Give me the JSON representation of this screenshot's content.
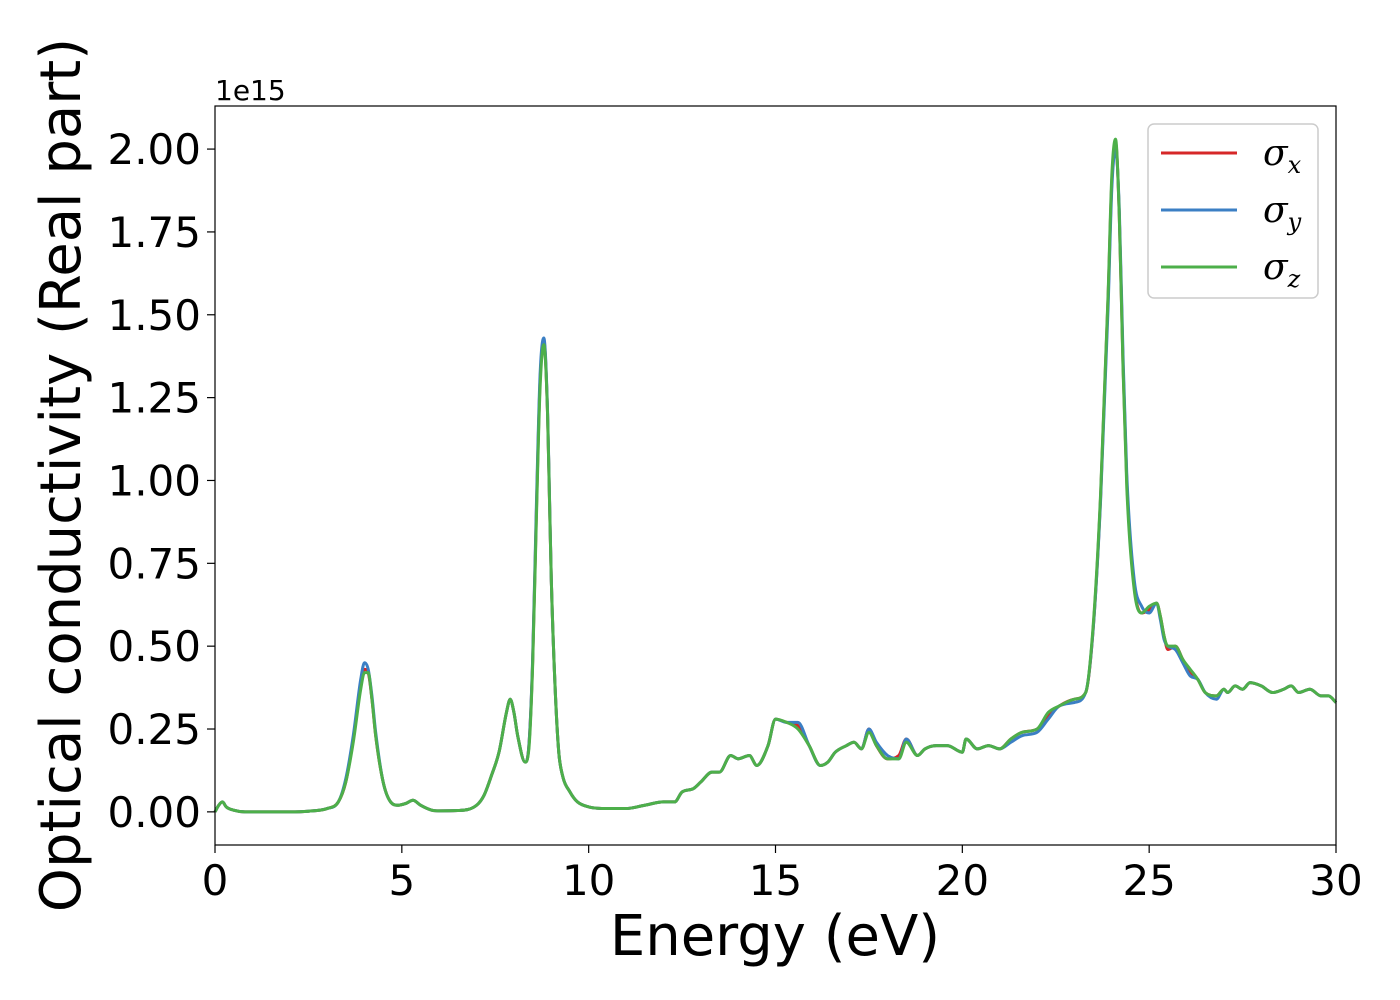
{
  "chart_data": {
    "type": "line",
    "xlabel": "Energy (eV)",
    "ylabel": "Optical conductivity (Real part)",
    "y_offset_text": "1e15",
    "xlim": [
      0,
      30
    ],
    "ylim": [
      -0.1,
      2.13
    ],
    "y_scale_factor": 1000000000000000.0,
    "xticks": [
      0,
      5,
      10,
      15,
      20,
      25,
      30
    ],
    "xtick_labels": [
      "0",
      "5",
      "10",
      "15",
      "20",
      "25",
      "30"
    ],
    "yticks": [
      0.0,
      0.25,
      0.5,
      0.75,
      1.0,
      1.25,
      1.5,
      1.75,
      2.0
    ],
    "ytick_labels": [
      "0.00",
      "0.25",
      "0.50",
      "0.75",
      "1.00",
      "1.25",
      "1.50",
      "1.75",
      "2.00"
    ],
    "grid": false,
    "legend_position": "top-right",
    "colors": {
      "sigma_x": "#d62728",
      "sigma_y": "#3b7fc4",
      "sigma_z": "#4daf4a"
    },
    "x": [
      0.0,
      0.1,
      0.2,
      0.3,
      0.5,
      0.8,
      1.0,
      1.5,
      2.0,
      2.5,
      3.0,
      3.3,
      3.5,
      3.7,
      3.9,
      4.0,
      4.1,
      4.2,
      4.3,
      4.5,
      4.7,
      4.9,
      5.1,
      5.3,
      5.5,
      5.8,
      6.0,
      6.5,
      7.0,
      7.2,
      7.4,
      7.6,
      7.8,
      7.9,
      8.0,
      8.1,
      8.3,
      8.4,
      8.5,
      8.6,
      8.7,
      8.8,
      8.9,
      8.95,
      9.0,
      9.1,
      9.2,
      9.3,
      9.5,
      9.7,
      10.0,
      10.5,
      11.0,
      11.5,
      12.0,
      12.3,
      12.5,
      12.8,
      13.0,
      13.3,
      13.5,
      13.8,
      14.0,
      14.3,
      14.5,
      14.8,
      15.0,
      15.3,
      15.6,
      15.9,
      16.2,
      16.4,
      16.6,
      16.9,
      17.1,
      17.3,
      17.5,
      17.7,
      18.0,
      18.3,
      18.5,
      18.8,
      19.0,
      19.3,
      19.6,
      20.0,
      20.1,
      20.4,
      20.7,
      21.0,
      21.3,
      21.6,
      22.0,
      22.3,
      22.6,
      23.0,
      23.3,
      23.5,
      23.7,
      23.9,
      24.0,
      24.1,
      24.2,
      24.3,
      24.4,
      24.6,
      24.8,
      25.0,
      25.2,
      25.3,
      25.4,
      25.5,
      25.7,
      25.9,
      26.1,
      26.3,
      26.5,
      26.8,
      27.0,
      27.1,
      27.3,
      27.5,
      27.7,
      28.0,
      28.3,
      28.6,
      28.8,
      29.0,
      29.3,
      29.6,
      29.8,
      30.0
    ],
    "series": [
      {
        "name": "σx",
        "values": [
          0.0,
          0.02,
          0.03,
          0.015,
          0.005,
          0.0,
          0.0,
          0.0,
          0.0,
          0.002,
          0.01,
          0.03,
          0.09,
          0.22,
          0.38,
          0.43,
          0.42,
          0.34,
          0.23,
          0.09,
          0.03,
          0.02,
          0.025,
          0.035,
          0.02,
          0.005,
          0.003,
          0.004,
          0.02,
          0.05,
          0.11,
          0.18,
          0.3,
          0.34,
          0.3,
          0.23,
          0.15,
          0.2,
          0.45,
          0.9,
          1.3,
          1.42,
          1.2,
          0.95,
          0.7,
          0.38,
          0.18,
          0.11,
          0.06,
          0.03,
          0.015,
          0.01,
          0.01,
          0.02,
          0.03,
          0.03,
          0.06,
          0.07,
          0.09,
          0.12,
          0.12,
          0.17,
          0.16,
          0.17,
          0.14,
          0.2,
          0.28,
          0.27,
          0.26,
          0.2,
          0.14,
          0.15,
          0.18,
          0.2,
          0.21,
          0.19,
          0.25,
          0.2,
          0.16,
          0.17,
          0.22,
          0.17,
          0.19,
          0.2,
          0.2,
          0.18,
          0.22,
          0.19,
          0.2,
          0.19,
          0.22,
          0.24,
          0.25,
          0.29,
          0.32,
          0.34,
          0.36,
          0.55,
          0.95,
          1.55,
          1.9,
          2.02,
          1.8,
          1.35,
          1.0,
          0.68,
          0.6,
          0.61,
          0.63,
          0.59,
          0.53,
          0.49,
          0.5,
          0.46,
          0.42,
          0.4,
          0.36,
          0.35,
          0.37,
          0.36,
          0.38,
          0.37,
          0.39,
          0.38,
          0.36,
          0.37,
          0.38,
          0.36,
          0.37,
          0.35,
          0.35,
          0.33
        ]
      },
      {
        "name": "σy",
        "values": [
          0.0,
          0.02,
          0.03,
          0.015,
          0.005,
          0.0,
          0.0,
          0.0,
          0.0,
          0.002,
          0.01,
          0.03,
          0.1,
          0.23,
          0.4,
          0.45,
          0.43,
          0.35,
          0.24,
          0.09,
          0.03,
          0.02,
          0.025,
          0.035,
          0.02,
          0.005,
          0.003,
          0.004,
          0.02,
          0.05,
          0.11,
          0.18,
          0.3,
          0.34,
          0.3,
          0.23,
          0.15,
          0.2,
          0.46,
          0.92,
          1.32,
          1.43,
          1.21,
          0.96,
          0.7,
          0.38,
          0.18,
          0.11,
          0.06,
          0.03,
          0.015,
          0.01,
          0.01,
          0.02,
          0.03,
          0.03,
          0.06,
          0.07,
          0.09,
          0.12,
          0.12,
          0.17,
          0.16,
          0.17,
          0.14,
          0.2,
          0.28,
          0.27,
          0.27,
          0.2,
          0.14,
          0.15,
          0.18,
          0.2,
          0.21,
          0.19,
          0.25,
          0.21,
          0.17,
          0.16,
          0.22,
          0.17,
          0.19,
          0.2,
          0.2,
          0.18,
          0.22,
          0.19,
          0.2,
          0.19,
          0.21,
          0.23,
          0.24,
          0.28,
          0.32,
          0.33,
          0.36,
          0.55,
          0.94,
          1.52,
          1.88,
          2.0,
          1.82,
          1.38,
          1.02,
          0.7,
          0.62,
          0.6,
          0.63,
          0.58,
          0.52,
          0.5,
          0.49,
          0.45,
          0.41,
          0.4,
          0.36,
          0.34,
          0.37,
          0.36,
          0.38,
          0.37,
          0.39,
          0.38,
          0.36,
          0.37,
          0.38,
          0.36,
          0.37,
          0.35,
          0.35,
          0.33
        ]
      },
      {
        "name": "σz",
        "values": [
          0.0,
          0.02,
          0.03,
          0.015,
          0.005,
          0.0,
          0.0,
          0.0,
          0.0,
          0.002,
          0.01,
          0.03,
          0.09,
          0.21,
          0.37,
          0.42,
          0.42,
          0.34,
          0.23,
          0.09,
          0.03,
          0.02,
          0.025,
          0.035,
          0.02,
          0.005,
          0.003,
          0.004,
          0.02,
          0.05,
          0.11,
          0.18,
          0.3,
          0.34,
          0.3,
          0.23,
          0.15,
          0.19,
          0.44,
          0.88,
          1.28,
          1.41,
          1.2,
          0.95,
          0.7,
          0.38,
          0.18,
          0.11,
          0.06,
          0.03,
          0.015,
          0.01,
          0.01,
          0.02,
          0.03,
          0.03,
          0.06,
          0.07,
          0.09,
          0.12,
          0.12,
          0.17,
          0.16,
          0.17,
          0.14,
          0.2,
          0.28,
          0.27,
          0.25,
          0.2,
          0.14,
          0.15,
          0.18,
          0.2,
          0.21,
          0.19,
          0.24,
          0.2,
          0.16,
          0.16,
          0.21,
          0.17,
          0.19,
          0.2,
          0.2,
          0.18,
          0.22,
          0.19,
          0.2,
          0.19,
          0.22,
          0.24,
          0.25,
          0.3,
          0.32,
          0.34,
          0.36,
          0.56,
          0.96,
          1.56,
          1.92,
          2.03,
          1.8,
          1.34,
          0.98,
          0.67,
          0.6,
          0.62,
          0.63,
          0.59,
          0.53,
          0.5,
          0.5,
          0.46,
          0.43,
          0.4,
          0.36,
          0.35,
          0.37,
          0.36,
          0.38,
          0.37,
          0.39,
          0.38,
          0.36,
          0.37,
          0.38,
          0.36,
          0.37,
          0.35,
          0.35,
          0.33
        ]
      }
    ]
  }
}
